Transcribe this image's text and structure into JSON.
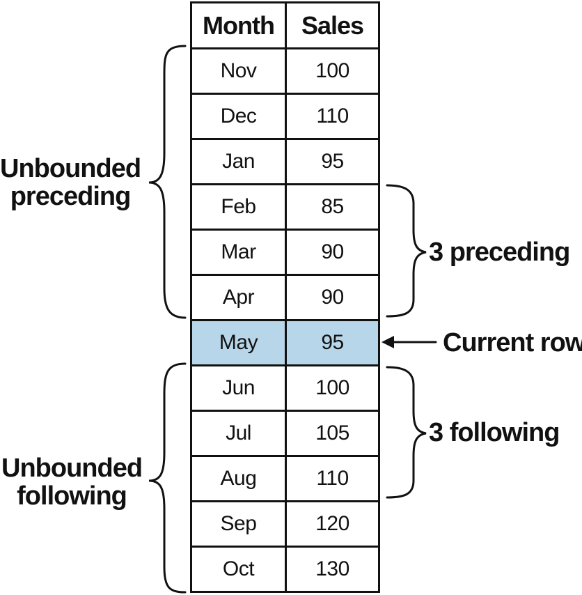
{
  "table": {
    "headers": {
      "month": "Month",
      "sales": "Sales"
    },
    "rows": [
      {
        "month": "Nov",
        "sales": "100"
      },
      {
        "month": "Dec",
        "sales": "110"
      },
      {
        "month": "Jan",
        "sales": "95"
      },
      {
        "month": "Feb",
        "sales": "85"
      },
      {
        "month": "Mar",
        "sales": "90"
      },
      {
        "month": "Apr",
        "sales": "90"
      },
      {
        "month": "May",
        "sales": "95"
      },
      {
        "month": "Jun",
        "sales": "100"
      },
      {
        "month": "Jul",
        "sales": "105"
      },
      {
        "month": "Aug",
        "sales": "110"
      },
      {
        "month": "Sep",
        "sales": "120"
      },
      {
        "month": "Oct",
        "sales": "130"
      }
    ],
    "current_row_color": "#b8d6ea"
  },
  "annotations": {
    "unbounded_preceding": {
      "line1": "Unbounded",
      "line2": "preceding"
    },
    "three_preceding": "3 preceding",
    "current_row": "Current row",
    "three_following": "3 following",
    "unbounded_following": {
      "line1": "Unbounded",
      "line2": "following"
    }
  }
}
